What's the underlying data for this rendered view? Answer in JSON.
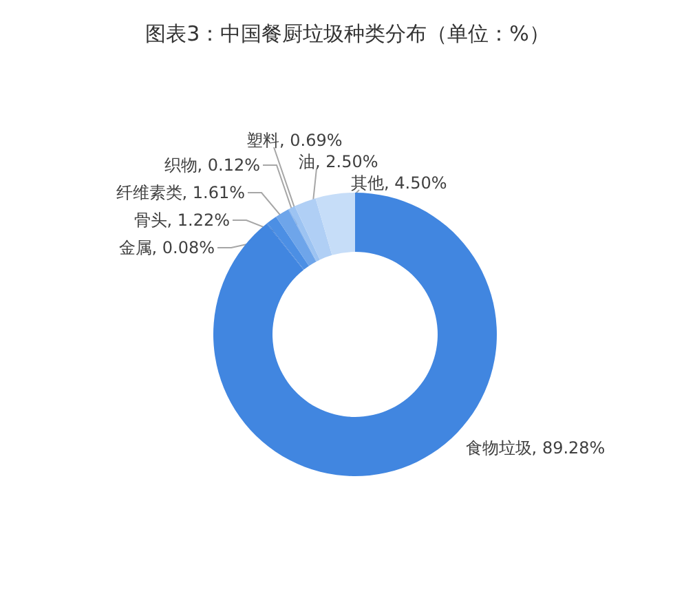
{
  "chart_data": {
    "type": "donut",
    "title": "图表3：中国餐厨垃圾种类分布（单位：%）",
    "categories": [
      "食物垃圾",
      "金属",
      "骨头",
      "纤维素类",
      "织物",
      "塑料",
      "油",
      "其他"
    ],
    "values": [
      89.28,
      0.08,
      1.22,
      1.61,
      0.12,
      0.69,
      2.5,
      4.5
    ],
    "colors": [
      "#4186e0",
      "#3b7dd8",
      "#4c8fe4",
      "#6ea5ea",
      "#86b4ee",
      "#9cc3f2",
      "#b0cff5",
      "#c6ddf8"
    ],
    "value_labels": [
      "89.28%",
      "0.08%",
      "1.22%",
      "1.61%",
      "0.12%",
      "0.69%",
      "2.50%",
      "4.50%"
    ]
  }
}
